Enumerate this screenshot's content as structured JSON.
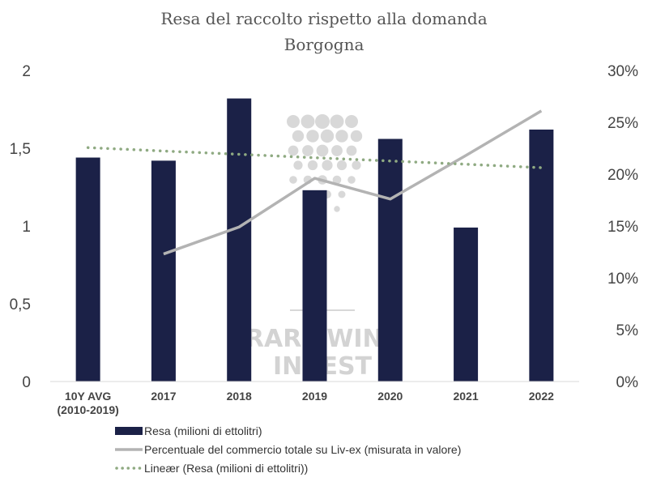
{
  "chart_data": {
    "type": "bar",
    "title": "Resa del raccolto rispetto alla domanda",
    "subtitle": "Borgogna",
    "categories": [
      "10Y AVG|(2010-2019)",
      "2017",
      "2018",
      "2019",
      "2020",
      "2021",
      "2022"
    ],
    "y_left": {
      "min": 0,
      "max": 2,
      "ticks": [
        "0",
        "0,5",
        "1",
        "1,5",
        "2"
      ],
      "tick_values": [
        0,
        0.5,
        1,
        1.5,
        2
      ]
    },
    "y_right": {
      "min": 0,
      "max": 30,
      "ticks": [
        "0%",
        "5%",
        "10%",
        "15%",
        "20%",
        "25%",
        "30%"
      ],
      "tick_values": [
        0,
        5,
        10,
        15,
        20,
        25,
        30
      ]
    },
    "grid": false,
    "series": [
      {
        "name": "Resa (milioni di ettolitri)",
        "type": "bar",
        "axis": "left",
        "color": "#1b2147",
        "values": [
          1.44,
          1.42,
          1.82,
          1.23,
          1.56,
          0.99,
          1.62
        ]
      },
      {
        "name": "Percentuale del commercio totale su Liv-ex (misurata in valore)",
        "type": "line",
        "axis": "right",
        "color": "#b3b3b3",
        "values": [
          null,
          12.3,
          14.9,
          19.6,
          17.6,
          21.8,
          26.1
        ]
      },
      {
        "name": "Lineær (Resa (milioni di ettolitri))",
        "type": "trendline",
        "axis": "left",
        "color": "#8faa82",
        "values": [
          1.504,
          1.482,
          1.461,
          1.439,
          1.418,
          1.397,
          1.375
        ]
      }
    ],
    "legend_position": "bottom",
    "watermark": {
      "line1": "RARE WINE",
      "line2": "INVEST"
    }
  }
}
